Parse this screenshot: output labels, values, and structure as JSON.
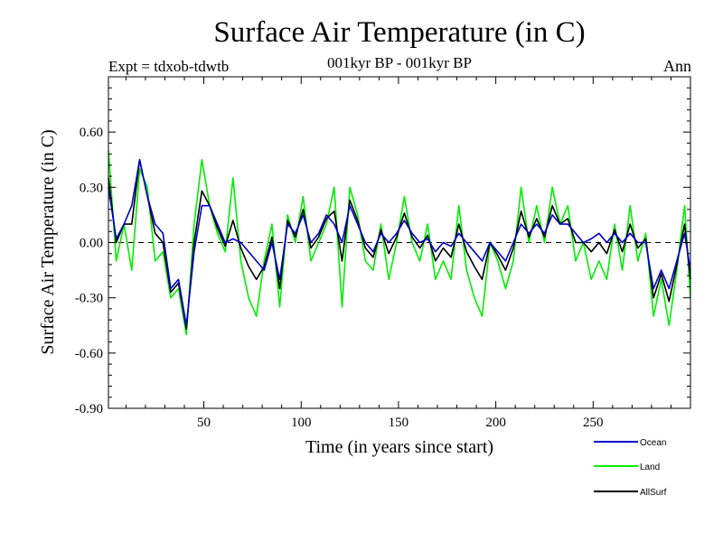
{
  "chart_data": {
    "type": "line",
    "title": "Surface Air Temperature (in C)",
    "subtitle": "001kyr BP - 001kyr BP",
    "experiment_label": "Expt = tdxob-tdwtb",
    "season_label": "Ann",
    "xlabel": "Time (in years since start)",
    "ylabel": "Surface Air Temperature (in C)",
    "xlim": [
      1,
      300
    ],
    "ylim": [
      -0.9,
      0.9
    ],
    "x_ticks": [
      50,
      100,
      150,
      200,
      250
    ],
    "x_tick_labels": [
      "50",
      "100",
      "150",
      "200",
      "250"
    ],
    "y_ticks": [
      -0.9,
      -0.6,
      -0.3,
      0.0,
      0.3,
      0.6
    ],
    "y_tick_labels": [
      "-0.90",
      "-0.60",
      "-0.30",
      "0.00",
      "0.30",
      "0.60"
    ],
    "zero_line": true,
    "grid": false,
    "legend_position": "bottom-right",
    "x": [
      1,
      5,
      9,
      13,
      17,
      21,
      25,
      29,
      33,
      37,
      41,
      45,
      49,
      53,
      57,
      61,
      65,
      69,
      73,
      77,
      81,
      85,
      89,
      93,
      97,
      101,
      105,
      109,
      113,
      117,
      121,
      125,
      129,
      133,
      137,
      141,
      145,
      149,
      153,
      157,
      161,
      165,
      169,
      173,
      177,
      181,
      185,
      189,
      193,
      197,
      201,
      205,
      209,
      213,
      217,
      221,
      225,
      229,
      233,
      237,
      241,
      245,
      249,
      253,
      257,
      261,
      265,
      269,
      273,
      277,
      281,
      285,
      289,
      293,
      297,
      300
    ],
    "series": [
      {
        "name": "Ocean",
        "color": "#0000cc",
        "values": [
          0.3,
          0.02,
          0.1,
          0.2,
          0.45,
          0.25,
          0.1,
          0.05,
          -0.25,
          -0.2,
          -0.45,
          -0.05,
          0.2,
          0.2,
          0.1,
          0.0,
          0.02,
          0.0,
          -0.05,
          -0.1,
          -0.15,
          0.0,
          -0.2,
          0.1,
          0.05,
          0.15,
          0.0,
          0.05,
          0.15,
          0.1,
          0.0,
          0.2,
          0.1,
          0.0,
          -0.05,
          0.05,
          0.0,
          0.05,
          0.12,
          0.05,
          0.0,
          0.02,
          -0.05,
          0.0,
          -0.02,
          0.05,
          0.0,
          -0.05,
          -0.1,
          0.0,
          -0.05,
          -0.1,
          0.0,
          0.1,
          0.05,
          0.1,
          0.05,
          0.15,
          0.1,
          0.1,
          0.05,
          0.0,
          0.02,
          0.05,
          0.0,
          0.05,
          0.0,
          0.05,
          0.0,
          0.0,
          -0.25,
          -0.15,
          -0.25,
          -0.1,
          0.05,
          -0.15
        ]
      },
      {
        "name": "Land",
        "color": "#00ee00",
        "values": [
          0.5,
          -0.1,
          0.1,
          -0.15,
          0.4,
          0.3,
          -0.1,
          -0.05,
          -0.3,
          -0.25,
          -0.5,
          0.1,
          0.45,
          0.2,
          0.05,
          -0.05,
          0.35,
          -0.1,
          -0.3,
          -0.4,
          -0.1,
          0.1,
          -0.35,
          0.15,
          0.0,
          0.25,
          -0.1,
          0.0,
          0.1,
          0.3,
          -0.35,
          0.3,
          0.15,
          -0.1,
          -0.15,
          0.1,
          -0.2,
          0.0,
          0.25,
          0.0,
          -0.1,
          0.1,
          -0.2,
          -0.1,
          -0.2,
          0.2,
          -0.15,
          -0.3,
          -0.4,
          0.0,
          -0.1,
          -0.25,
          -0.1,
          0.3,
          0.0,
          0.2,
          0.0,
          0.3,
          0.1,
          0.2,
          -0.1,
          0.0,
          -0.2,
          -0.1,
          -0.2,
          0.1,
          -0.15,
          0.2,
          -0.1,
          0.05,
          -0.4,
          -0.2,
          -0.45,
          -0.15,
          0.2,
          -0.3
        ]
      },
      {
        "name": "AllSurf",
        "color": "#000000",
        "values": [
          0.35,
          0.0,
          0.1,
          0.1,
          0.45,
          0.25,
          0.05,
          0.0,
          -0.27,
          -0.22,
          -0.47,
          0.0,
          0.28,
          0.2,
          0.08,
          -0.02,
          0.12,
          -0.03,
          -0.13,
          -0.2,
          -0.13,
          0.03,
          -0.25,
          0.12,
          0.03,
          0.18,
          -0.03,
          0.03,
          0.13,
          0.17,
          -0.1,
          0.23,
          0.12,
          -0.03,
          -0.08,
          0.07,
          -0.06,
          0.03,
          0.16,
          0.03,
          -0.03,
          0.04,
          -0.1,
          -0.03,
          -0.08,
          0.1,
          -0.05,
          -0.13,
          -0.2,
          0.0,
          -0.07,
          -0.15,
          -0.03,
          0.17,
          0.03,
          0.13,
          0.03,
          0.2,
          0.1,
          0.13,
          0.0,
          0.0,
          -0.05,
          0.0,
          -0.06,
          0.07,
          -0.05,
          0.1,
          -0.03,
          0.02,
          -0.3,
          -0.17,
          -0.32,
          -0.12,
          0.1,
          -0.2
        ]
      }
    ]
  }
}
